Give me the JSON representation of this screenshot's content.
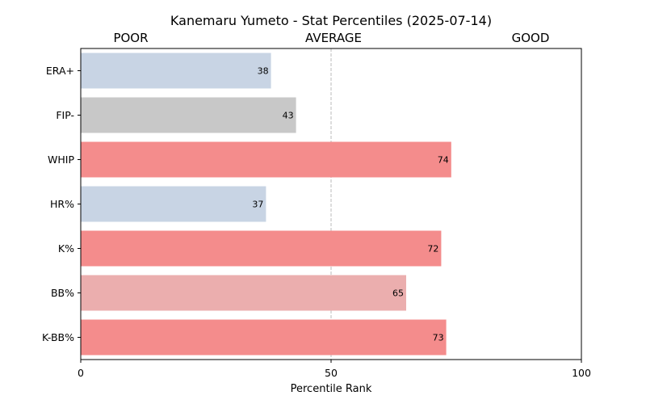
{
  "chart_data": {
    "type": "bar",
    "orientation": "horizontal",
    "title": "Kanemaru Yumeto - Stat Percentiles (2025-07-14)",
    "band_labels": [
      "POOR",
      "AVERAGE",
      "GOOD"
    ],
    "xlabel": "Percentile Rank",
    "ylabel": "",
    "xlim": [
      0,
      100
    ],
    "xticks": [
      0,
      50,
      100
    ],
    "reference_line": 50,
    "categories": [
      "ERA+",
      "FIP-",
      "WHIP",
      "HR%",
      "K%",
      "BB%",
      "K-BB%"
    ],
    "values": [
      38,
      43,
      74,
      37,
      72,
      65,
      73
    ],
    "bar_colors": [
      "#c8d4e4",
      "#c8c8c8",
      "#f48c8c",
      "#c8d4e4",
      "#f48c8c",
      "#ebaeae",
      "#f48c8c"
    ],
    "grid": false
  }
}
